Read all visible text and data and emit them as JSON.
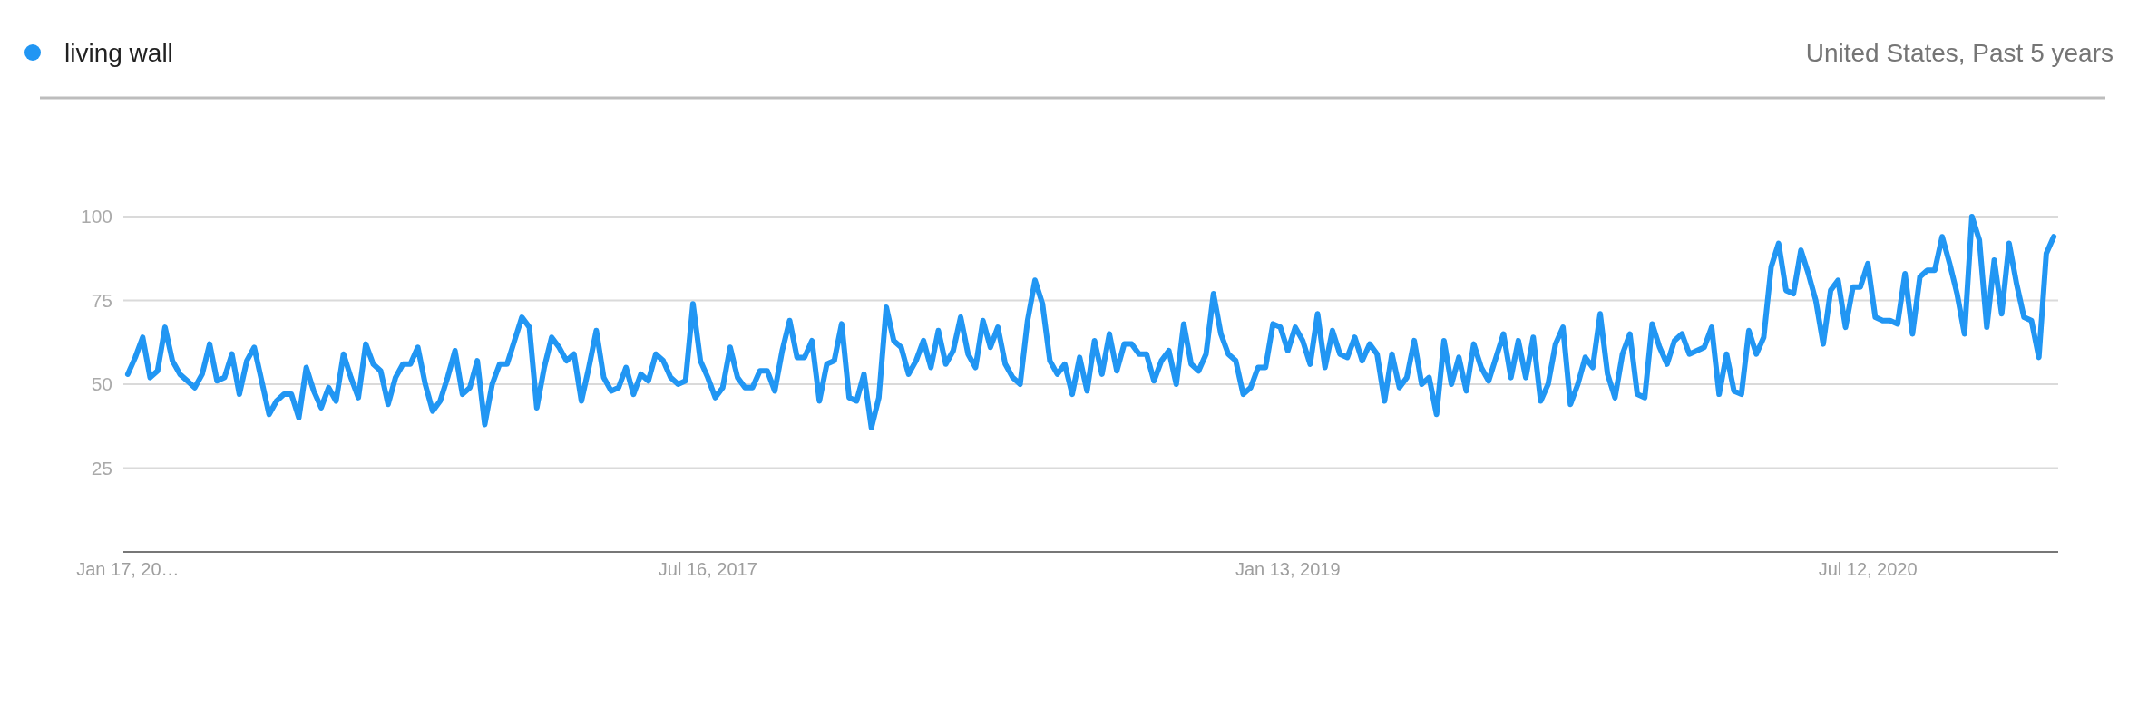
{
  "chart_data": {
    "type": "line",
    "subtitle": "United States, Past 5 years",
    "categories": [
      "Jan 17, 20…",
      null,
      null,
      null,
      null,
      null,
      null,
      null,
      null,
      null,
      null,
      null,
      null,
      null,
      null,
      null,
      null,
      null,
      null,
      null,
      null,
      null,
      null,
      null,
      null,
      null,
      null,
      null,
      null,
      null,
      null,
      null,
      null,
      null,
      null,
      null,
      null,
      null,
      null,
      null,
      null,
      null,
      null,
      null,
      null,
      null,
      null,
      null,
      null,
      null,
      null,
      null,
      null,
      null,
      null,
      null,
      null,
      null,
      null,
      null,
      null,
      null,
      null,
      null,
      null,
      null,
      null,
      null,
      null,
      null,
      null,
      null,
      null,
      null,
      null,
      null,
      null,
      null,
      "Jul 16, 2017",
      null,
      null,
      null,
      null,
      null,
      null,
      null,
      null,
      null,
      null,
      null,
      null,
      null,
      null,
      null,
      null,
      null,
      null,
      null,
      null,
      null,
      null,
      null,
      null,
      null,
      null,
      null,
      null,
      null,
      null,
      null,
      null,
      null,
      null,
      null,
      null,
      null,
      null,
      null,
      null,
      null,
      null,
      null,
      null,
      null,
      null,
      null,
      null,
      null,
      null,
      null,
      null,
      null,
      null,
      null,
      null,
      null,
      null,
      null,
      null,
      null,
      null,
      null,
      null,
      null,
      null,
      null,
      null,
      null,
      null,
      null,
      null,
      null,
      null,
      null,
      null,
      null,
      "Jan 13, 2019",
      null,
      null,
      null,
      null,
      null,
      null,
      null,
      null,
      null,
      null,
      null,
      null,
      null,
      null,
      null,
      null,
      null,
      null,
      null,
      null,
      null,
      null,
      null,
      null,
      null,
      null,
      null,
      null,
      null,
      null,
      null,
      null,
      null,
      null,
      null,
      null,
      null,
      null,
      null,
      null,
      null,
      null,
      null,
      null,
      null,
      null,
      null,
      null,
      null,
      null,
      null,
      null,
      null,
      null,
      null,
      null,
      null,
      null,
      null,
      null,
      null,
      null,
      null,
      null,
      null,
      null,
      null,
      null,
      null,
      null,
      null,
      null,
      null,
      null,
      null,
      null,
      null,
      "Jul 12, 2020",
      null,
      null,
      null,
      null,
      null,
      null,
      null,
      null,
      null,
      null,
      null,
      null,
      null,
      null,
      null,
      null,
      null,
      null,
      null,
      null,
      null,
      null,
      null,
      null,
      null
    ],
    "series": [
      {
        "name": "living wall",
        "color": "#2196f3",
        "values": [
          53,
          58,
          64,
          52,
          54,
          67,
          57,
          53,
          51,
          49,
          53,
          62,
          51,
          52,
          59,
          47,
          57,
          61,
          51,
          41,
          45,
          47,
          47,
          40,
          55,
          48,
          43,
          49,
          45,
          59,
          52,
          46,
          62,
          56,
          54,
          44,
          52,
          56,
          56,
          61,
          50,
          42,
          45,
          52,
          60,
          47,
          49,
          57,
          38,
          50,
          56,
          56,
          63,
          70,
          67,
          43,
          55,
          64,
          61,
          57,
          59,
          45,
          55,
          66,
          52,
          48,
          49,
          55,
          47,
          53,
          51,
          59,
          57,
          52,
          50,
          51,
          74,
          57,
          52,
          46,
          49,
          61,
          52,
          49,
          49,
          54,
          54,
          48,
          60,
          69,
          58,
          58,
          63,
          45,
          56,
          57,
          68,
          46,
          45,
          53,
          37,
          46,
          73,
          63,
          61,
          53,
          57,
          63,
          55,
          66,
          56,
          60,
          70,
          59,
          55,
          69,
          61,
          67,
          56,
          52,
          50,
          69,
          81,
          74,
          57,
          53,
          56,
          47,
          58,
          48,
          63,
          53,
          65,
          54,
          62,
          62,
          59,
          59,
          51,
          57,
          60,
          50,
          68,
          56,
          54,
          59,
          77,
          65,
          59,
          57,
          47,
          49,
          55,
          55,
          68,
          67,
          60,
          67,
          63,
          56,
          71,
          55,
          66,
          59,
          58,
          64,
          57,
          62,
          59,
          45,
          59,
          49,
          52,
          63,
          50,
          52,
          41,
          63,
          50,
          58,
          48,
          62,
          55,
          51,
          58,
          65,
          52,
          63,
          52,
          64,
          45,
          50,
          62,
          67,
          44,
          50,
          58,
          55,
          71,
          53,
          46,
          59,
          65,
          47,
          46,
          68,
          61,
          56,
          63,
          65,
          59,
          60,
          61,
          67,
          47,
          59,
          48,
          47,
          66,
          59,
          64,
          85,
          92,
          78,
          77,
          90,
          83,
          75,
          62,
          78,
          81,
          67,
          79,
          79,
          86,
          70,
          69,
          69,
          68,
          83,
          65,
          82,
          84,
          84,
          94,
          86,
          77,
          65,
          100,
          93,
          67,
          87,
          71,
          92,
          80,
          70,
          69,
          58,
          89,
          94
        ]
      }
    ],
    "ylim": [
      0,
      100
    ],
    "yticks": [
      25,
      50,
      75,
      100
    ],
    "grid": "y",
    "legend": "top left"
  }
}
